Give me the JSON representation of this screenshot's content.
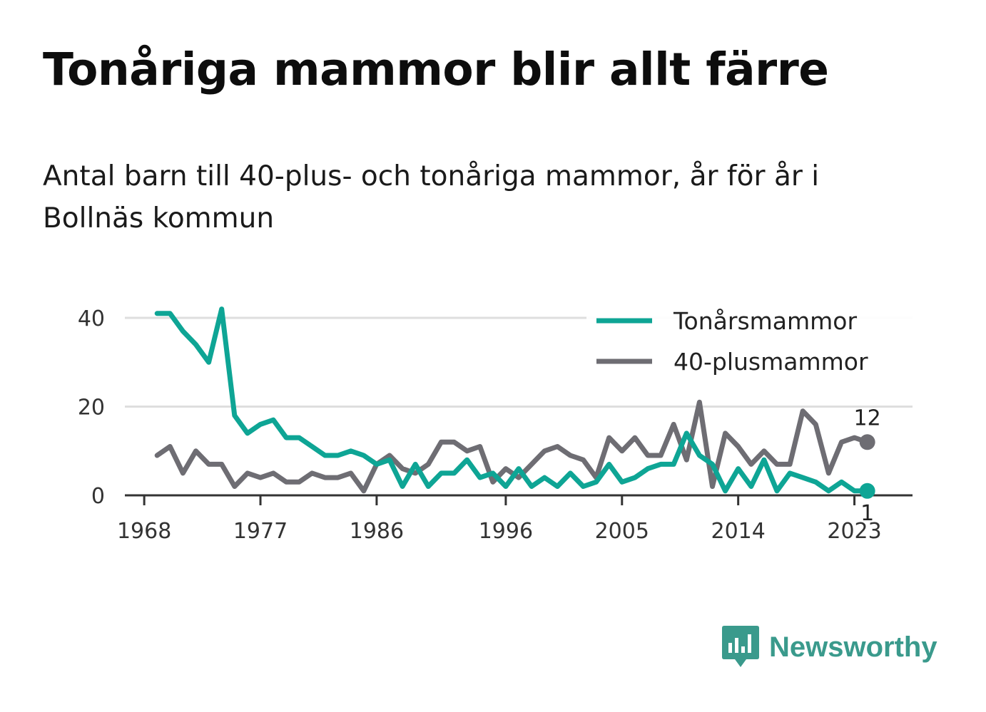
{
  "header": {
    "title": "Tonåriga mammor blir allt färre",
    "subtitle": "Antal barn till 40-plus- och tonåriga mammor, år för år i Bollnäs kommun"
  },
  "brand": {
    "name": "Newsworthy",
    "color": "#3a9a8c",
    "icon": "newsworthy-logo-icon"
  },
  "chart_data": {
    "type": "line",
    "x_tick_labels": [
      "1968",
      "1977",
      "1986",
      "1996",
      "2005",
      "2014",
      "2023"
    ],
    "y_ticks": [
      0,
      20,
      40
    ],
    "ylim": [
      0,
      42
    ],
    "xlim": [
      1966.5,
      2027.5
    ],
    "grid": "horizontal",
    "legend_position": "top-right",
    "x": [
      1969,
      1970,
      1971,
      1972,
      1973,
      1974,
      1975,
      1976,
      1977,
      1978,
      1979,
      1980,
      1981,
      1982,
      1983,
      1984,
      1985,
      1986,
      1987,
      1988,
      1989,
      1990,
      1991,
      1992,
      1993,
      1994,
      1995,
      1996,
      1997,
      1998,
      1999,
      2000,
      2001,
      2002,
      2003,
      2004,
      2005,
      2006,
      2007,
      2008,
      2009,
      2010,
      2011,
      2012,
      2013,
      2014,
      2015,
      2016,
      2017,
      2018,
      2019,
      2020,
      2021,
      2022,
      2023,
      2024
    ],
    "series": [
      {
        "name": "Tonårsmammor",
        "color": "#0ea595",
        "values": [
          41,
          41,
          37,
          34,
          30,
          42,
          18,
          14,
          16,
          17,
          13,
          13,
          11,
          9,
          9,
          10,
          9,
          7,
          8,
          2,
          7,
          2,
          5,
          5,
          8,
          4,
          5,
          2,
          6,
          2,
          4,
          2,
          5,
          2,
          3,
          7,
          3,
          4,
          6,
          7,
          7,
          14,
          9,
          7,
          1,
          6,
          2,
          8,
          1,
          5,
          4,
          3,
          1,
          3,
          1,
          1
        ],
        "end_label": "1"
      },
      {
        "name": "40-plusmammor",
        "color": "#6e6d73",
        "values": [
          9,
          11,
          5,
          10,
          7,
          7,
          2,
          5,
          4,
          5,
          3,
          3,
          5,
          4,
          4,
          5,
          1,
          7,
          9,
          6,
          5,
          7,
          12,
          12,
          10,
          11,
          3,
          6,
          4,
          7,
          10,
          11,
          9,
          8,
          4,
          13,
          10,
          13,
          9,
          9,
          16,
          8,
          21,
          2,
          14,
          11,
          7,
          10,
          7,
          7,
          19,
          16,
          5,
          12,
          13,
          12
        ],
        "end_label": "12"
      }
    ]
  }
}
